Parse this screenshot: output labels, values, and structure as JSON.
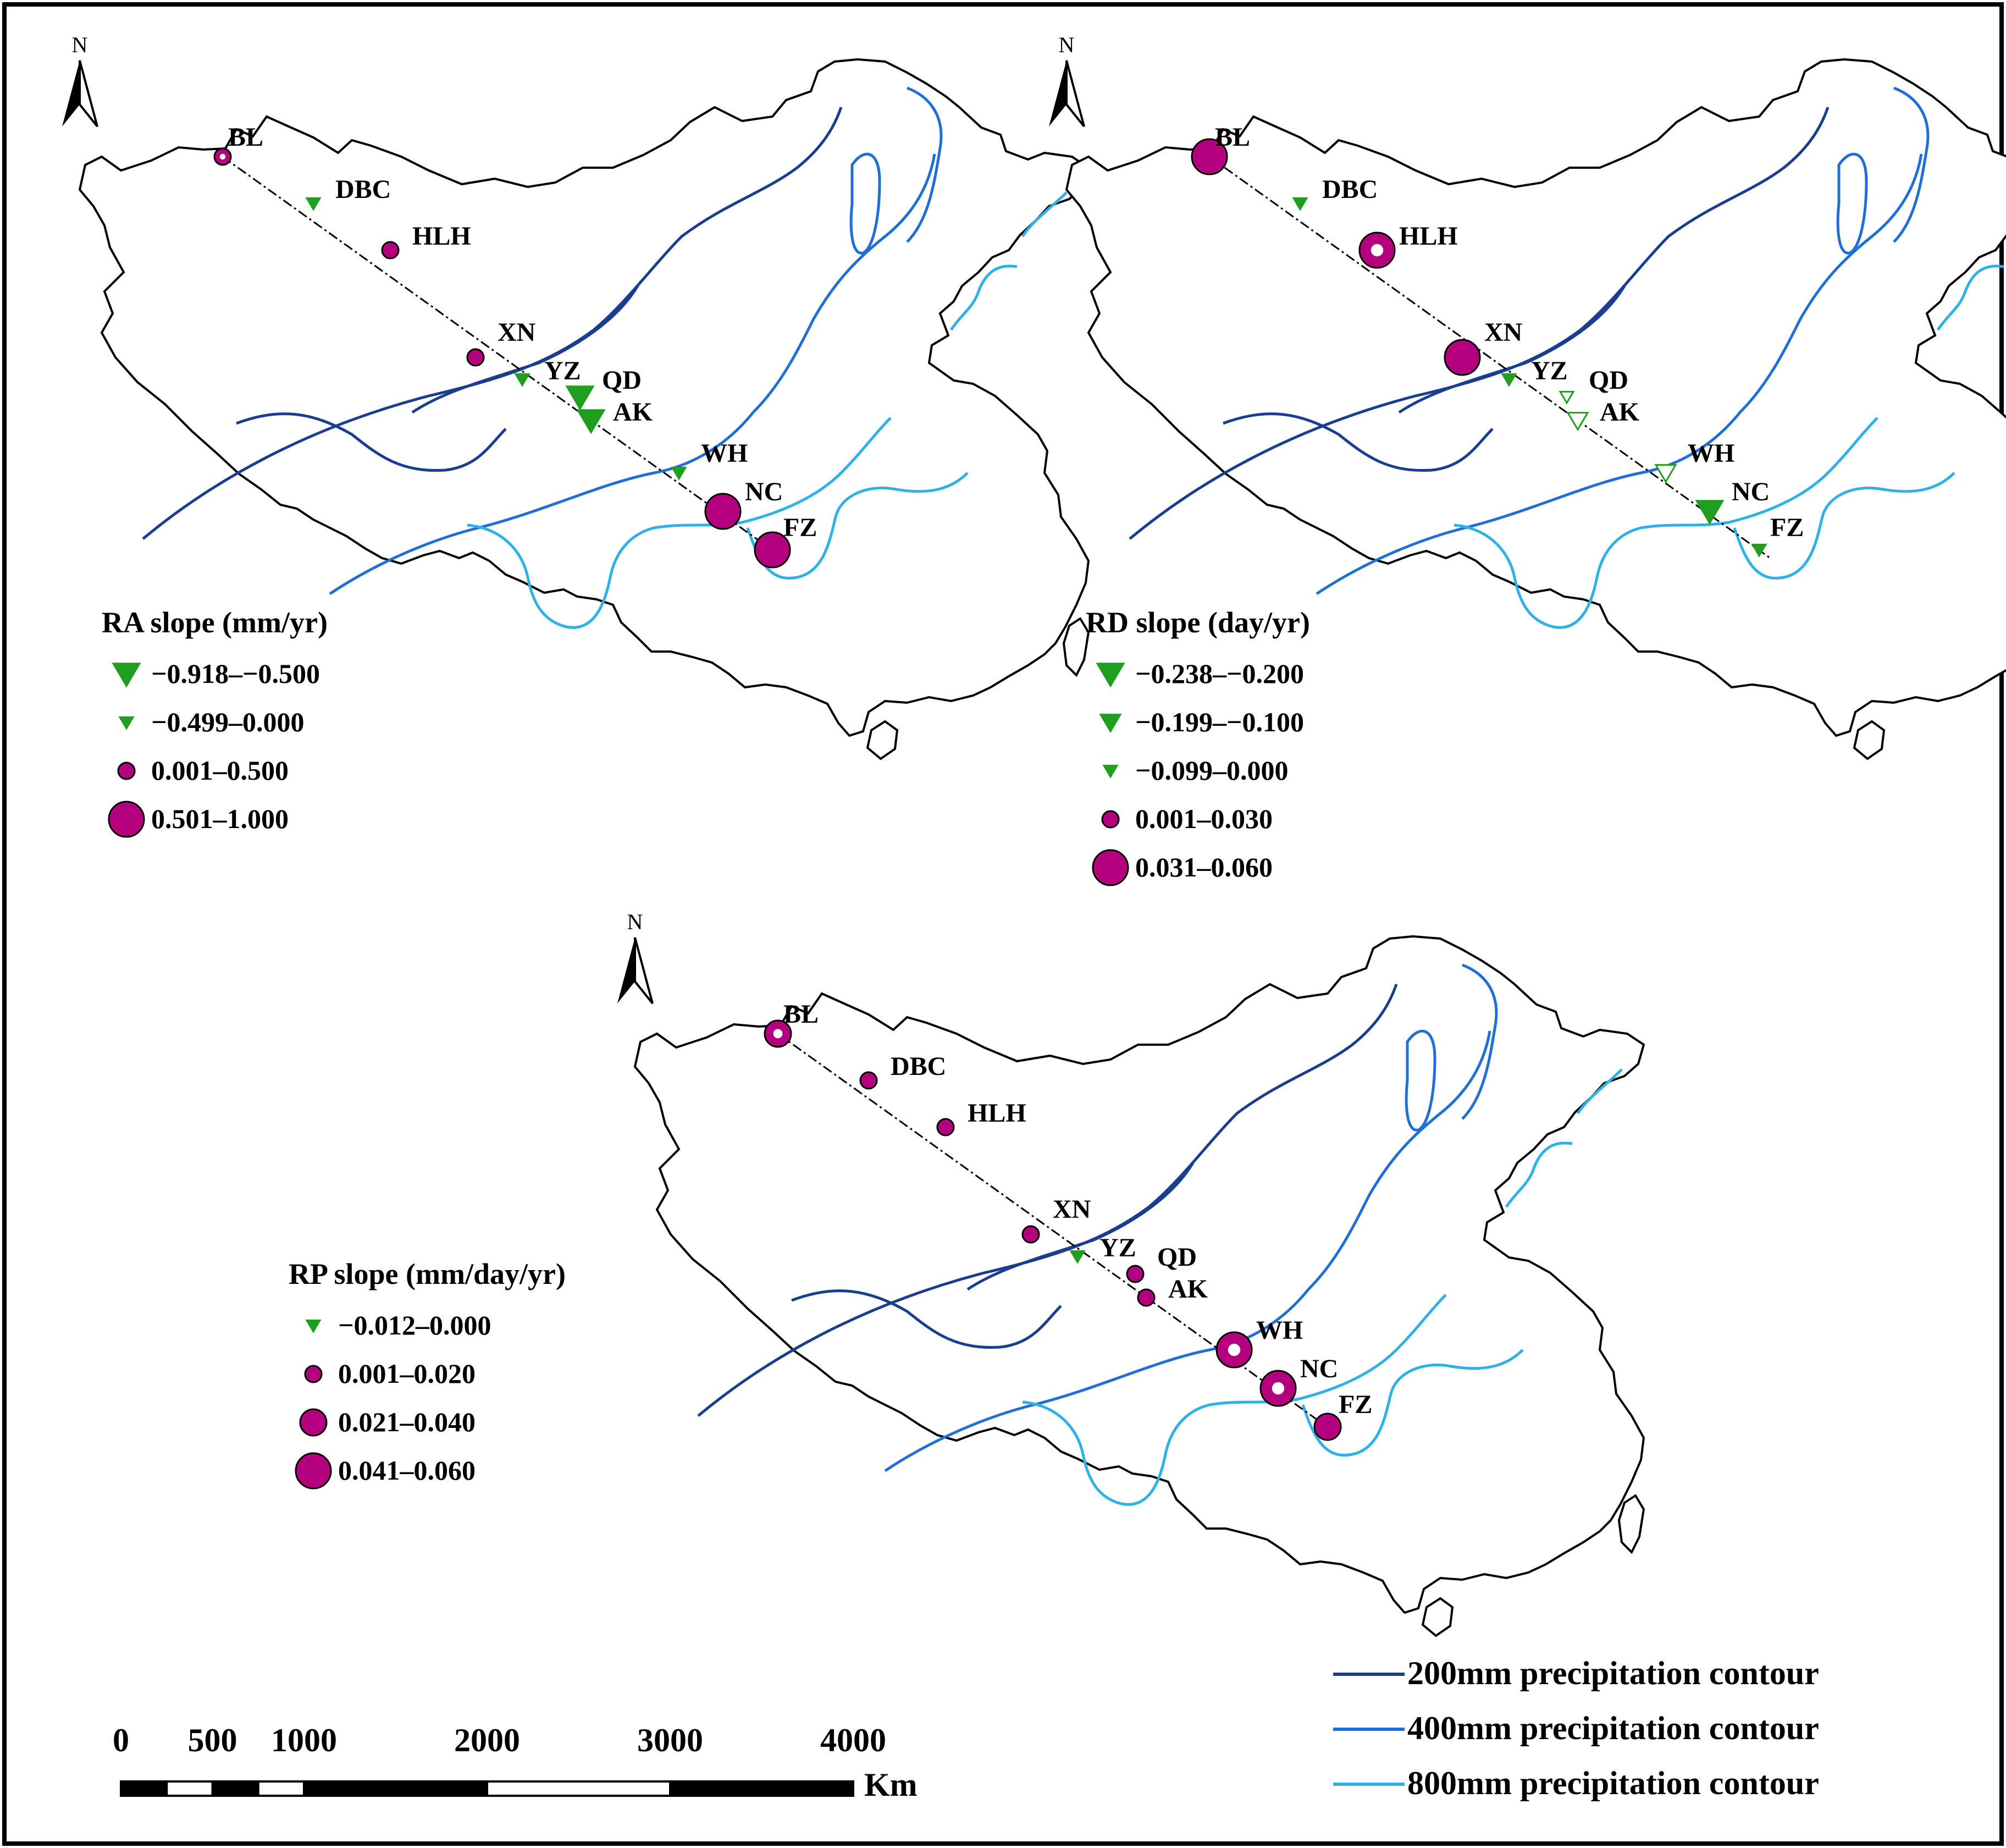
{
  "panels": [
    {
      "id": "ra",
      "legend_title": "RA slope (mm/yr)",
      "classes": [
        {
          "label": "−0.918–−0.500",
          "symbol": "triangle",
          "size": "large"
        },
        {
          "label": "−0.499–0.000",
          "symbol": "triangle",
          "size": "small"
        },
        {
          "label": "0.001–0.500",
          "symbol": "circle",
          "size": "small"
        },
        {
          "label": "0.501–1.000",
          "symbol": "circle",
          "size": "large"
        }
      ],
      "stations": [
        {
          "code": "BL",
          "class": 2,
          "ring": true
        },
        {
          "code": "DBC",
          "class": 1,
          "ring": false
        },
        {
          "code": "HLH",
          "class": 2,
          "ring": false
        },
        {
          "code": "XN",
          "class": 2,
          "ring": false
        },
        {
          "code": "YZ",
          "class": 1,
          "ring": false
        },
        {
          "code": "QD",
          "class": 0,
          "ring": false
        },
        {
          "code": "AK",
          "class": 0,
          "ring": false
        },
        {
          "code": "WH",
          "class": 1,
          "ring": false
        },
        {
          "code": "NC",
          "class": 3,
          "ring": false
        },
        {
          "code": "FZ",
          "class": 3,
          "ring": false
        }
      ]
    },
    {
      "id": "rd",
      "legend_title": "RD slope (day/yr)",
      "classes": [
        {
          "label": "−0.238–−0.200",
          "symbol": "triangle",
          "size": "large"
        },
        {
          "label": "−0.199–−0.100",
          "symbol": "triangle",
          "size": "medium"
        },
        {
          "label": "−0.099–0.000",
          "symbol": "triangle",
          "size": "small"
        },
        {
          "label": "0.001–0.030",
          "symbol": "circle",
          "size": "small"
        },
        {
          "label": "0.031–0.060",
          "symbol": "circle",
          "size": "large"
        }
      ],
      "stations": [
        {
          "code": "BL",
          "class": 4,
          "ring": false
        },
        {
          "code": "DBC",
          "class": 2,
          "ring": false
        },
        {
          "code": "HLH",
          "class": 4,
          "ring": true
        },
        {
          "code": "XN",
          "class": 4,
          "ring": false
        },
        {
          "code": "YZ",
          "class": 2,
          "ring": false
        },
        {
          "code": "QD",
          "class": 2,
          "ring": true
        },
        {
          "code": "AK",
          "class": 1,
          "ring": true
        },
        {
          "code": "WH",
          "class": 1,
          "ring": true
        },
        {
          "code": "NC",
          "class": 0,
          "ring": false
        },
        {
          "code": "FZ",
          "class": 2,
          "ring": false
        }
      ]
    },
    {
      "id": "rp",
      "legend_title": "RP slope (mm/day/yr)",
      "classes": [
        {
          "label": "−0.012–0.000",
          "symbol": "triangle",
          "size": "small"
        },
        {
          "label": "0.001–0.020",
          "symbol": "circle",
          "size": "small"
        },
        {
          "label": "0.021–0.040",
          "symbol": "circle",
          "size": "medium"
        },
        {
          "label": "0.041–0.060",
          "symbol": "circle",
          "size": "large"
        }
      ],
      "stations": [
        {
          "code": "BL",
          "class": 2,
          "ring": true
        },
        {
          "code": "DBC",
          "class": 1,
          "ring": false
        },
        {
          "code": "HLH",
          "class": 1,
          "ring": false
        },
        {
          "code": "XN",
          "class": 1,
          "ring": false
        },
        {
          "code": "YZ",
          "class": 0,
          "ring": false
        },
        {
          "code": "QD",
          "class": 1,
          "ring": false
        },
        {
          "code": "AK",
          "class": 1,
          "ring": false
        },
        {
          "code": "WH",
          "class": 3,
          "ring": true
        },
        {
          "code": "NC",
          "class": 3,
          "ring": true
        },
        {
          "code": "FZ",
          "class": 2,
          "ring": false
        }
      ]
    }
  ],
  "north_label": "N",
  "contours": [
    {
      "label": "200mm precipitation contour",
      "color": "#1a3d8f"
    },
    {
      "label": "400mm precipitation contour",
      "color": "#1f6fd6"
    },
    {
      "label": "800mm precipitation contour",
      "color": "#2fb0e6"
    }
  ],
  "scale_bar": {
    "ticks": [
      "0",
      "500",
      "1000",
      "2000",
      "3000",
      "4000"
    ],
    "unit": "Km"
  },
  "colors": {
    "positive": "#b4007e",
    "negative": "#1f9e1f",
    "outline": "#000000"
  }
}
